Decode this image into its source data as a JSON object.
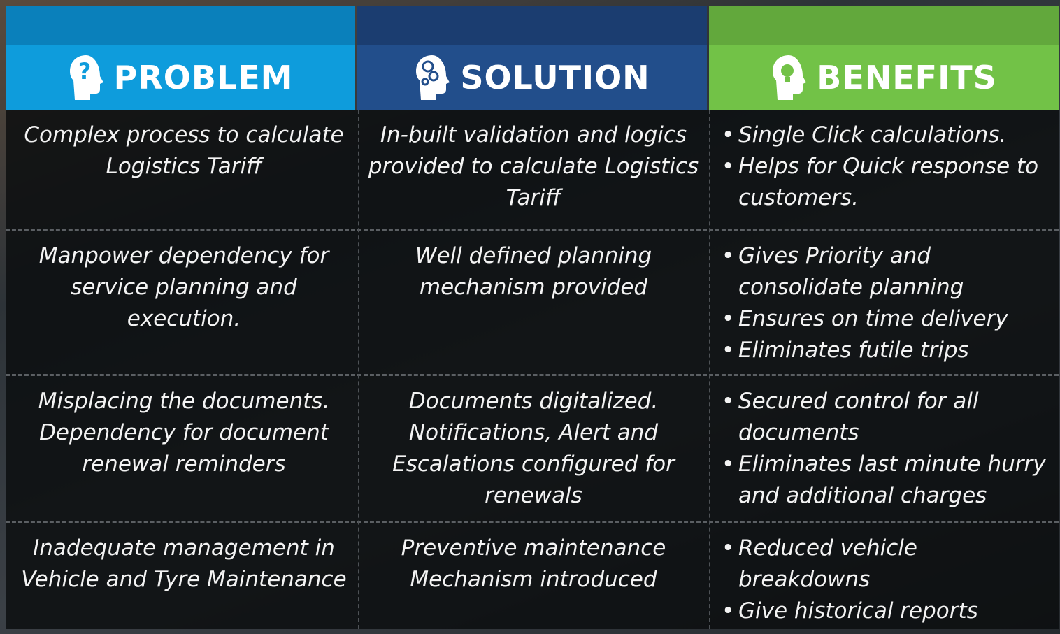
{
  "columns": [
    {
      "title": "PROBLEM"
    },
    {
      "title": "SOLUTION"
    },
    {
      "title": "BENEFITS"
    }
  ],
  "rows": [
    {
      "problem": "Complex process to calculate Logistics Tariff",
      "solution": "In-built validation and logics provided to calculate Logistics Tariff",
      "benefits": [
        "Single Click calculations.",
        "Helps for Quick response to customers."
      ]
    },
    {
      "problem": "Manpower dependency for service planning and execution.",
      "solution": "Well defined planning mechanism provided",
      "benefits": [
        "Gives Priority and consolidate planning",
        "Ensures on time delivery",
        "Eliminates futile trips"
      ]
    },
    {
      "problem": "Misplacing the documents. Dependency for document renewal reminders",
      "solution": "Documents digitalized. Notifications, Alert and Escalations configured for renewals",
      "benefits": [
        "Secured control for all documents",
        "Eliminates last minute hurry and additional charges"
      ]
    },
    {
      "problem": "Inadequate management in Vehicle and Tyre Maintenance",
      "solution": "Preventive maintenance Mechanism introduced",
      "benefits": [
        "Reduced vehicle breakdowns",
        "Give historical reports"
      ]
    }
  ]
}
